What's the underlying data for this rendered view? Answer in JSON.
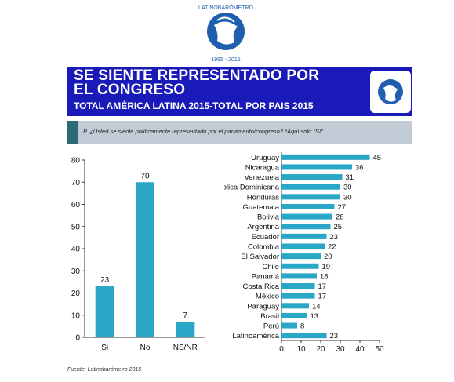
{
  "header": {
    "logo_text": "LATINOBARÓMETRO",
    "logo_years": "1995 - 2015",
    "title": "SE SIENTE REPRESENTADO POR EL CONGRESO",
    "subtitle": "TOTAL AMÉRICA LATINA 2015-TOTAL POR PAIS 2015",
    "question": "P. ¿Usted se siente políticamente representado por el parlamento/congreso? *Aquí solo \"Sí\".",
    "source": "Fuente: Latinobarómetro 2015"
  },
  "colors": {
    "bar": "#2aa6c7",
    "banner": "#1a1ab8",
    "qbar": "#c3ccd6",
    "accent": "#2b6b78"
  },
  "chart_data": [
    {
      "type": "bar",
      "categories": [
        "Si",
        "No",
        "NS/NR"
      ],
      "values": [
        23,
        70,
        7
      ],
      "ylim": [
        0,
        80
      ],
      "yticks": [
        0,
        10,
        20,
        30,
        40,
        50,
        60,
        70,
        80
      ],
      "grid": false
    },
    {
      "type": "bar",
      "orientation": "horizontal",
      "categories": [
        "Uruguay",
        "Nicaragua",
        "Venezuela",
        "República Dominicana",
        "Honduras",
        "Guatemala",
        "Bolivia",
        "Argentina",
        "Ecuador",
        "Colombia",
        "El Salvador",
        "Chile",
        "Panamá",
        "Costa Rica",
        "México",
        "Paraguay",
        "Brasil",
        "Perú",
        "Latinoamérica"
      ],
      "values": [
        45,
        36,
        31,
        30,
        30,
        27,
        26,
        25,
        23,
        22,
        20,
        19,
        18,
        17,
        17,
        14,
        13,
        8,
        23
      ],
      "xlim": [
        0,
        50
      ],
      "xticks": [
        0,
        10,
        20,
        30,
        40,
        50
      ],
      "grid": false
    }
  ]
}
